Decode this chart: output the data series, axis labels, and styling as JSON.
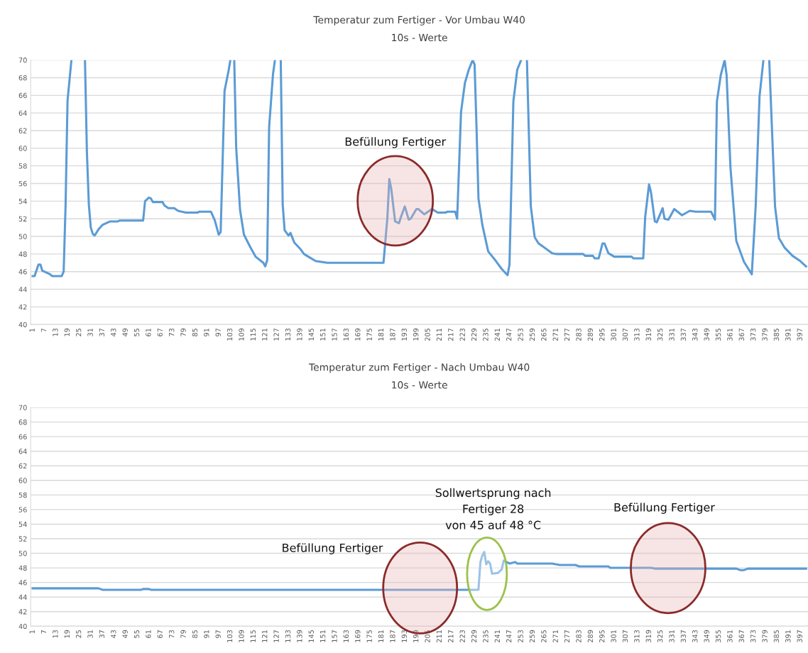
{
  "chart_data": [
    {
      "type": "line",
      "title": "Temperatur zum Fertiger - Vor Umbau W40",
      "subtitle": "10s - Werte",
      "series": [
        {
          "color": "#5b9bd5",
          "line_style": "solid",
          "x": [
            1,
            2,
            4,
            5,
            6,
            10,
            11,
            16,
            17,
            18,
            19,
            21,
            24,
            28,
            29,
            30,
            31,
            32,
            33,
            35,
            37,
            41,
            45,
            46,
            58,
            59,
            61,
            62,
            63,
            68,
            69,
            71,
            74,
            76,
            80,
            86,
            87,
            93,
            95,
            97,
            98,
            100,
            102,
            103,
            104,
            105,
            106,
            108,
            110,
            113,
            116,
            120,
            121,
            122,
            123,
            125,
            126,
            127,
            128,
            129,
            130,
            131,
            133,
            134,
            136,
            139,
            141,
            144,
            147,
            153,
            182,
            184,
            185,
            186,
            188,
            190,
            191,
            193,
            195,
            196,
            199,
            200,
            203,
            207,
            210,
            214,
            215,
            219,
            220,
            222,
            224,
            226,
            228,
            229,
            230,
            231,
            233,
            236,
            240,
            243,
            246,
            247,
            249,
            251,
            253,
            254,
            256,
            258,
            260,
            262,
            269,
            271,
            285,
            286,
            290,
            291,
            293,
            295,
            296,
            298,
            301,
            310,
            311,
            316,
            317,
            319,
            320,
            322,
            323,
            326,
            327,
            329,
            332,
            336,
            340,
            343,
            351,
            353,
            354,
            356,
            358,
            359,
            361,
            364,
            368,
            372,
            374,
            376,
            378,
            380,
            381,
            384,
            386,
            389,
            393,
            397,
            400
          ],
          "values": [
            45.5,
            45.5,
            46.8,
            46.8,
            46.1,
            45.7,
            45.5,
            45.5,
            46.0,
            53.6,
            65.4,
            70,
            null,
            70,
            59.5,
            53.6,
            51.0,
            50.3,
            50.1,
            50.8,
            51.3,
            51.7,
            51.7,
            51.8,
            51.8,
            54.0,
            54.4,
            54.3,
            53.9,
            53.9,
            53.5,
            53.2,
            53.2,
            52.9,
            52.7,
            52.7,
            52.8,
            52.8,
            51.8,
            50.2,
            50.5,
            66.5,
            68.7,
            70,
            null,
            70,
            60.1,
            53.0,
            50.2,
            48.9,
            47.7,
            47.0,
            46.6,
            47.3,
            62.4,
            68.4,
            70,
            null,
            null,
            70,
            53.6,
            50.7,
            50.1,
            50.4,
            49.3,
            48.6,
            48.0,
            47.6,
            47.2,
            47.0,
            47.0,
            52.1,
            56.5,
            55.4,
            51.7,
            51.5,
            52.2,
            53.4,
            51.9,
            52.0,
            53.1,
            53.1,
            52.5,
            53.1,
            52.7,
            52.7,
            52.8,
            52.8,
            52.0,
            64.1,
            67.4,
            68.9,
            70,
            69.5,
            62.3,
            54.3,
            51.3,
            48.3,
            47.2,
            46.3,
            45.6,
            46.8,
            65.3,
            68.9,
            70,
            null,
            70,
            53.4,
            49.9,
            49.2,
            48.1,
            48.0,
            48.0,
            47.8,
            47.8,
            47.5,
            47.5,
            49.2,
            49.2,
            48.1,
            47.7,
            47.7,
            47.5,
            47.5,
            52.2,
            55.9,
            55.0,
            51.7,
            51.6,
            53.2,
            52.0,
            51.9,
            53.1,
            52.4,
            52.9,
            52.8,
            52.8,
            51.9,
            65.3,
            68.3,
            70,
            68.3,
            57.8,
            49.5,
            47.1,
            45.7,
            53.4,
            65.9,
            70,
            null,
            70,
            53.4,
            49.8,
            48.7,
            47.8,
            47.2,
            46.6
          ]
        }
      ],
      "xlim": [
        0,
        401
      ],
      "xticks": [
        1,
        7,
        13,
        19,
        25,
        31,
        37,
        43,
        49,
        55,
        61,
        67,
        73,
        79,
        85,
        91,
        97,
        103,
        109,
        115,
        121,
        127,
        133,
        139,
        145,
        151,
        157,
        163,
        169,
        175,
        181,
        187,
        193,
        199,
        205,
        211,
        217,
        223,
        229,
        235,
        241,
        247,
        253,
        259,
        265,
        271,
        277,
        283,
        289,
        295,
        301,
        307,
        313,
        319,
        325,
        331,
        337,
        343,
        349,
        355,
        361,
        367,
        373,
        379,
        385,
        391,
        397
      ],
      "ylim": [
        40,
        70
      ],
      "yticks": [
        40,
        42,
        44,
        46,
        48,
        50,
        52,
        54,
        56,
        58,
        60,
        62,
        64,
        66,
        68,
        70
      ],
      "grid": "y",
      "annotations": [
        "Befüllung Fertiger"
      ]
    },
    {
      "type": "line",
      "title": "Temperatur zum Fertiger - Nach Umbau W40",
      "subtitle": "10s - Werte",
      "series": [
        {
          "color": "#5b9bd5",
          "line_style": "solid",
          "x": [
            1,
            35,
            37,
            57,
            58,
            61,
            62,
            190,
            231,
            232,
            233,
            234,
            235,
            236,
            237,
            238,
            241,
            243,
            244,
            247,
            250,
            251,
            269,
            273,
            281,
            283,
            298,
            299,
            320,
            322,
            364,
            366,
            368,
            370,
            400
          ],
          "values": [
            45.2,
            45.2,
            45.0,
            45.0,
            45.1,
            45.1,
            45.0,
            45.0,
            45.0,
            48.8,
            49.7,
            50.2,
            48.5,
            48.9,
            48.6,
            47.2,
            47.3,
            47.8,
            49.0,
            48.6,
            48.8,
            48.6,
            48.6,
            48.4,
            48.4,
            48.2,
            48.2,
            48.0,
            48.0,
            47.9,
            47.9,
            47.7,
            47.7,
            47.9,
            47.9
          ]
        }
      ],
      "xlim": [
        0,
        401
      ],
      "xticks": [
        1,
        7,
        13,
        19,
        25,
        31,
        37,
        43,
        49,
        55,
        61,
        67,
        73,
        79,
        85,
        91,
        97,
        103,
        109,
        115,
        121,
        127,
        133,
        139,
        145,
        151,
        157,
        163,
        169,
        175,
        181,
        187,
        193,
        199,
        205,
        211,
        217,
        223,
        229,
        235,
        241,
        247,
        253,
        259,
        265,
        271,
        277,
        283,
        289,
        295,
        301,
        307,
        313,
        319,
        325,
        331,
        337,
        343,
        349,
        355,
        361,
        367,
        373,
        379,
        385,
        391,
        397
      ],
      "ylim": [
        40,
        70
      ],
      "yticks": [
        40,
        42,
        44,
        46,
        48,
        50,
        52,
        54,
        56,
        58,
        60,
        62,
        64,
        66,
        68,
        70
      ],
      "grid": "y",
      "annotations": [
        "Befüllung Fertiger",
        "Sollwertsprung nach\nFertiger 28\nvon 45 auf 48 °C",
        "Befüllung Fertiger"
      ]
    }
  ]
}
